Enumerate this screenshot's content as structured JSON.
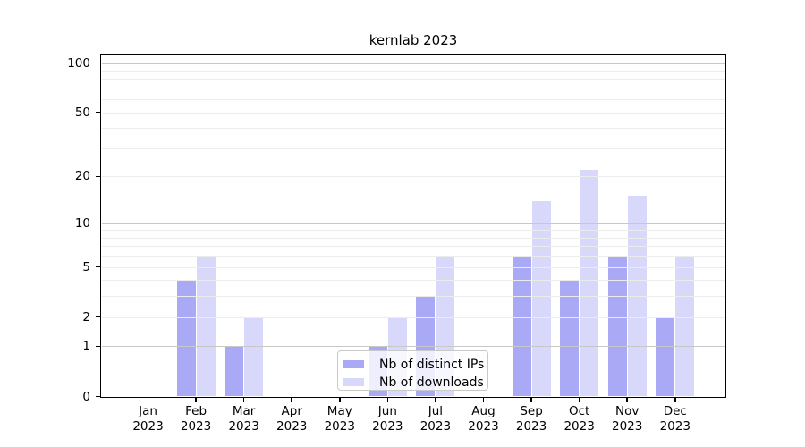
{
  "title": "kernlab 2023",
  "colors": {
    "background": "#ffffff",
    "axis": "#000000",
    "grid_minor": "#ececec",
    "grid_major": "#c8c8c8",
    "ips_bar": "#a9a9f5",
    "downloads_bar": "#d8d8fa",
    "legend_border": "#c9c9c9"
  },
  "legend": {
    "items": [
      {
        "label": "Nb of distinct IPs",
        "series": "ips"
      },
      {
        "label": "Nb of downloads",
        "series": "downloads"
      }
    ]
  },
  "chart_data": {
    "type": "bar",
    "title": "kernlab 2023",
    "scale": "log1p",
    "categories": [
      "Jan",
      "Feb",
      "Mar",
      "Apr",
      "May",
      "Jun",
      "Jul",
      "Aug",
      "Sep",
      "Oct",
      "Nov",
      "Dec"
    ],
    "year_label": "2023",
    "series": [
      {
        "name": "Nb of distinct IPs",
        "key": "ips",
        "color": "#a9a9f5",
        "values": [
          0,
          4,
          1,
          0,
          0,
          1,
          3,
          0,
          6,
          4,
          6,
          2
        ]
      },
      {
        "name": "Nb of downloads",
        "key": "downloads",
        "color": "#d8d8fa",
        "values": [
          0,
          6,
          2,
          0,
          0,
          2,
          6,
          0,
          14,
          22,
          15,
          6
        ]
      }
    ],
    "xlabel": "",
    "ylabel": "",
    "yticks": [
      0,
      1,
      2,
      5,
      10,
      20,
      50,
      100
    ],
    "grid_minor_values": [
      2,
      3,
      4,
      5,
      6,
      7,
      8,
      9,
      20,
      30,
      40,
      50,
      60,
      70,
      80,
      90
    ],
    "grid_major_values": [
      1,
      10,
      100
    ],
    "ylim": [
      0,
      112.6
    ],
    "grid": "on",
    "legend_position": "lower-center-inside"
  }
}
